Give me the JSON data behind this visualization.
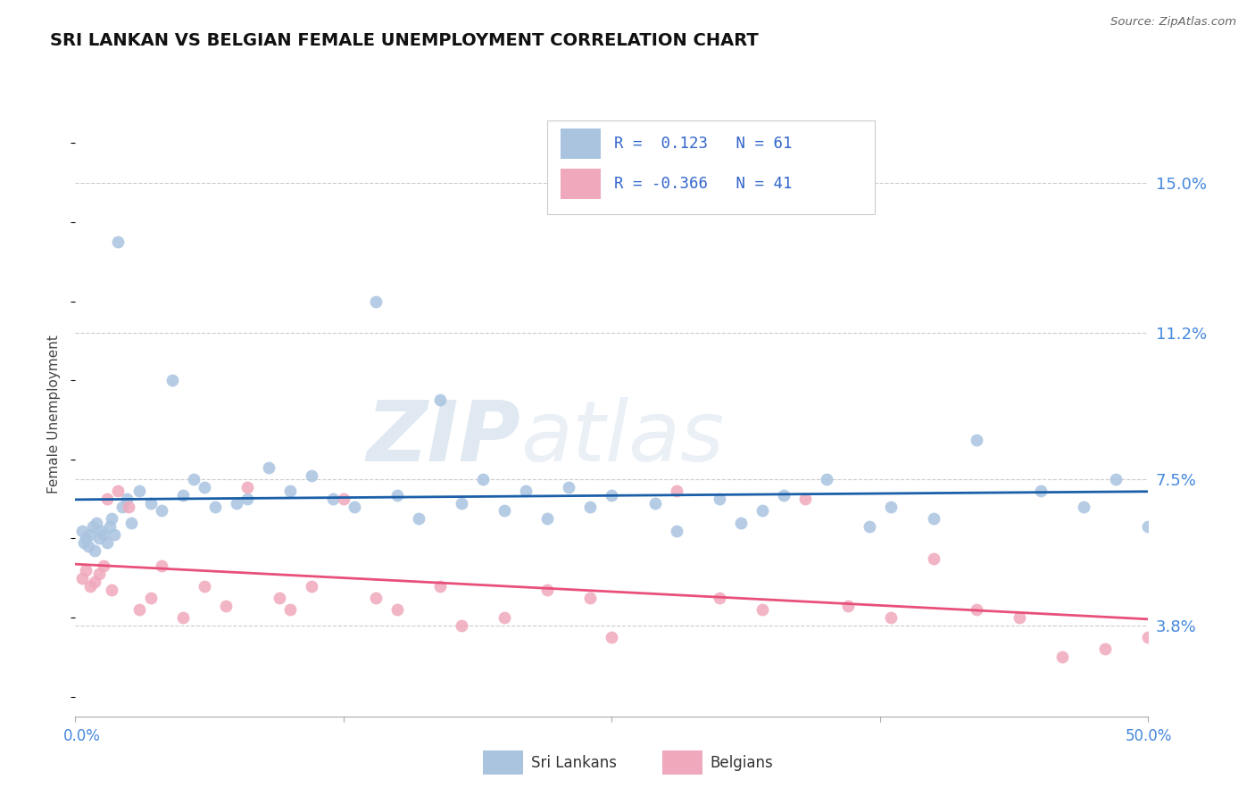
{
  "title": "SRI LANKAN VS BELGIAN FEMALE UNEMPLOYMENT CORRELATION CHART",
  "source": "Source: ZipAtlas.com",
  "ylabel": "Female Unemployment",
  "yticks": [
    3.8,
    7.5,
    11.2,
    15.0
  ],
  "ytick_labels": [
    "3.8%",
    "7.5%",
    "11.2%",
    "15.0%"
  ],
  "xmin": 0.0,
  "xmax": 50.0,
  "ymin": 1.5,
  "ymax": 16.8,
  "sri_lankan_color": "#aac4e0",
  "belgian_color": "#f0a8bc",
  "line_sri_lankan_color": "#1a5fa8",
  "line_belgian_color": "#e8507a",
  "r_sri_lankan": 0.123,
  "n_sri_lankan": 61,
  "r_belgian": -0.366,
  "n_belgian": 41,
  "background_color": "#ffffff",
  "sri_lankans_x": [
    0.3,
    0.4,
    0.5,
    0.6,
    0.7,
    0.8,
    0.9,
    1.0,
    1.1,
    1.2,
    1.3,
    1.5,
    1.6,
    1.7,
    1.8,
    2.0,
    2.2,
    2.4,
    2.6,
    3.0,
    3.5,
    4.0,
    4.5,
    5.0,
    5.5,
    6.0,
    6.5,
    7.5,
    8.0,
    9.0,
    10.0,
    11.0,
    12.0,
    13.0,
    14.0,
    15.0,
    16.0,
    17.0,
    18.0,
    19.0,
    20.0,
    21.0,
    22.0,
    23.0,
    24.0,
    25.0,
    27.0,
    28.0,
    30.0,
    31.0,
    32.0,
    33.0,
    35.0,
    37.0,
    38.0,
    40.0,
    42.0,
    45.0,
    47.0,
    48.5,
    50.0
  ],
  "sri_lankans_y": [
    6.2,
    5.9,
    6.0,
    5.8,
    6.1,
    6.3,
    5.7,
    6.4,
    6.0,
    6.2,
    6.1,
    5.9,
    6.3,
    6.5,
    6.1,
    13.5,
    6.8,
    7.0,
    6.4,
    7.2,
    6.9,
    6.7,
    10.0,
    7.1,
    7.5,
    7.3,
    6.8,
    6.9,
    7.0,
    7.8,
    7.2,
    7.6,
    7.0,
    6.8,
    12.0,
    7.1,
    6.5,
    9.5,
    6.9,
    7.5,
    6.7,
    7.2,
    6.5,
    7.3,
    6.8,
    7.1,
    6.9,
    6.2,
    7.0,
    6.4,
    6.7,
    7.1,
    7.5,
    6.3,
    6.8,
    6.5,
    8.5,
    7.2,
    6.8,
    7.5,
    6.3
  ],
  "belgians_x": [
    0.3,
    0.5,
    0.7,
    0.9,
    1.1,
    1.3,
    1.5,
    1.7,
    2.0,
    2.5,
    3.0,
    3.5,
    4.0,
    5.0,
    6.0,
    7.0,
    8.0,
    9.5,
    10.0,
    11.0,
    12.5,
    14.0,
    15.0,
    17.0,
    18.0,
    20.0,
    22.0,
    24.0,
    25.0,
    28.0,
    30.0,
    32.0,
    34.0,
    36.0,
    38.0,
    40.0,
    42.0,
    44.0,
    46.0,
    48.0,
    50.0
  ],
  "belgians_y": [
    5.0,
    5.2,
    4.8,
    4.9,
    5.1,
    5.3,
    7.0,
    4.7,
    7.2,
    6.8,
    4.2,
    4.5,
    5.3,
    4.0,
    4.8,
    4.3,
    7.3,
    4.5,
    4.2,
    4.8,
    7.0,
    4.5,
    4.2,
    4.8,
    3.8,
    4.0,
    4.7,
    4.5,
    3.5,
    7.2,
    4.5,
    4.2,
    7.0,
    4.3,
    4.0,
    5.5,
    4.2,
    4.0,
    3.0,
    3.2,
    3.5
  ]
}
